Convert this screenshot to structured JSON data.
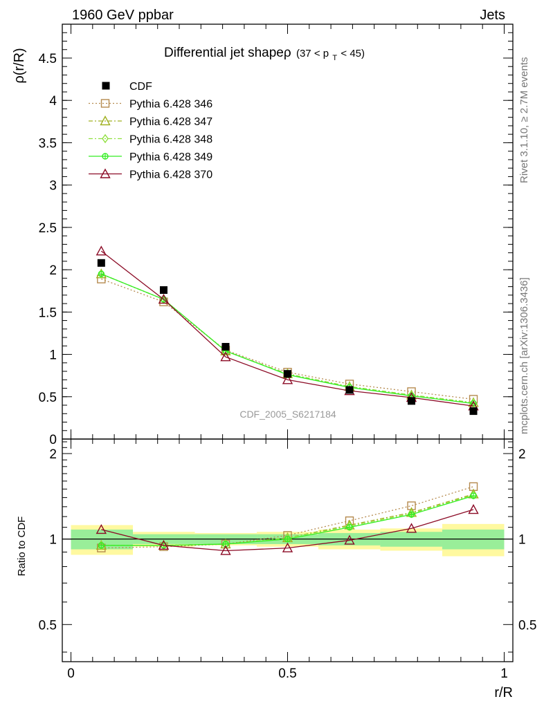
{
  "header": {
    "left": "1960 GeV ppbar",
    "right": "Jets"
  },
  "side_labels": {
    "rivet": "Rivet 3.1.10, ≥ 2.7M events",
    "mcplots": "mcplots.cern.ch [arXiv:1306.3436]"
  },
  "chart_data": {
    "type": "line",
    "title": "Differential jet shapeρ",
    "title_range": {
      "lead": "(37 < p",
      "sub": "T",
      "tail": " < 45)"
    },
    "analysis_id": "CDF_2005_S6217184",
    "xlabel": "r/R",
    "ylabel": "ρ(r/R)",
    "ratio_ylabel": "Ratio to CDF",
    "xlim": [
      -0.02,
      1.02
    ],
    "ylim": [
      0,
      4.9
    ],
    "ratio_ylim": [
      0.37,
      2.25
    ],
    "ratio_scale": "log",
    "x_ticks": [
      {
        "v": 0,
        "label": "0"
      },
      {
        "v": 0.5,
        "label": "0.5"
      },
      {
        "v": 1,
        "label": "1"
      }
    ],
    "y_ticks": [
      {
        "v": 0,
        "label": "0"
      },
      {
        "v": 0.5,
        "label": "0.5"
      },
      {
        "v": 1,
        "label": "1"
      },
      {
        "v": 1.5,
        "label": "1.5"
      },
      {
        "v": 2,
        "label": "2"
      },
      {
        "v": 2.5,
        "label": "2.5"
      },
      {
        "v": 3,
        "label": "3"
      },
      {
        "v": 3.5,
        "label": "3.5"
      },
      {
        "v": 4,
        "label": "4"
      },
      {
        "v": 4.5,
        "label": "4.5"
      }
    ],
    "ratio_ticks": [
      {
        "v": 0.5,
        "label": "0.5"
      },
      {
        "v": 1,
        "label": "1"
      },
      {
        "v": 2,
        "label": "2"
      }
    ],
    "x": [
      0.07,
      0.214,
      0.357,
      0.5,
      0.643,
      0.786,
      0.929
    ],
    "bin_edges": [
      0,
      0.143,
      0.286,
      0.429,
      0.571,
      0.714,
      0.857,
      1.0
    ],
    "data": {
      "name": "CDF",
      "values": [
        2.08,
        1.76,
        1.09,
        0.77,
        0.58,
        0.45,
        0.33
      ],
      "ratio_band_stat": [
        0.08,
        0.04,
        0.04,
        0.04,
        0.05,
        0.06,
        0.08
      ],
      "ratio_band_total": [
        0.12,
        0.06,
        0.05,
        0.06,
        0.08,
        0.09,
        0.13
      ]
    },
    "series": [
      {
        "name": "Pythia 6.428 346",
        "color": "#b58a4e",
        "dash": "2,3",
        "marker": "square",
        "values": [
          1.89,
          1.62,
          1.05,
          0.79,
          0.65,
          0.56,
          0.47
        ],
        "ratio": [
          0.93,
          0.94,
          0.96,
          1.03,
          1.16,
          1.31,
          1.53
        ]
      },
      {
        "name": "Pythia 6.428 347",
        "color": "#a0b020",
        "dash": "6,3,2,3",
        "marker": "triangle",
        "values": [
          1.95,
          1.65,
          1.04,
          0.77,
          0.62,
          0.52,
          0.43
        ],
        "ratio": [
          0.95,
          0.95,
          0.96,
          1.01,
          1.12,
          1.24,
          1.44
        ]
      },
      {
        "name": "Pythia 6.428 348",
        "color": "#90e040",
        "dash": "6,3,2,3",
        "marker": "diamond",
        "values": [
          1.95,
          1.65,
          1.04,
          0.77,
          0.62,
          0.52,
          0.43
        ],
        "ratio": [
          0.95,
          0.95,
          0.96,
          1.01,
          1.11,
          1.23,
          1.43
        ]
      },
      {
        "name": "Pythia 6.428 349",
        "color": "#33ee22",
        "dash": "",
        "marker": "circle",
        "values": [
          1.95,
          1.65,
          1.04,
          0.76,
          0.61,
          0.51,
          0.42
        ],
        "ratio": [
          0.95,
          0.95,
          0.96,
          1.0,
          1.1,
          1.22,
          1.42
        ]
      },
      {
        "name": "Pythia 6.428 370",
        "color": "#8b0a25",
        "dash": "",
        "marker": "triangle",
        "values": [
          2.22,
          1.65,
          0.97,
          0.7,
          0.57,
          0.49,
          0.39
        ],
        "ratio": [
          1.08,
          0.95,
          0.91,
          0.93,
          0.99,
          1.09,
          1.27
        ]
      }
    ],
    "legend_position": "top-left"
  }
}
